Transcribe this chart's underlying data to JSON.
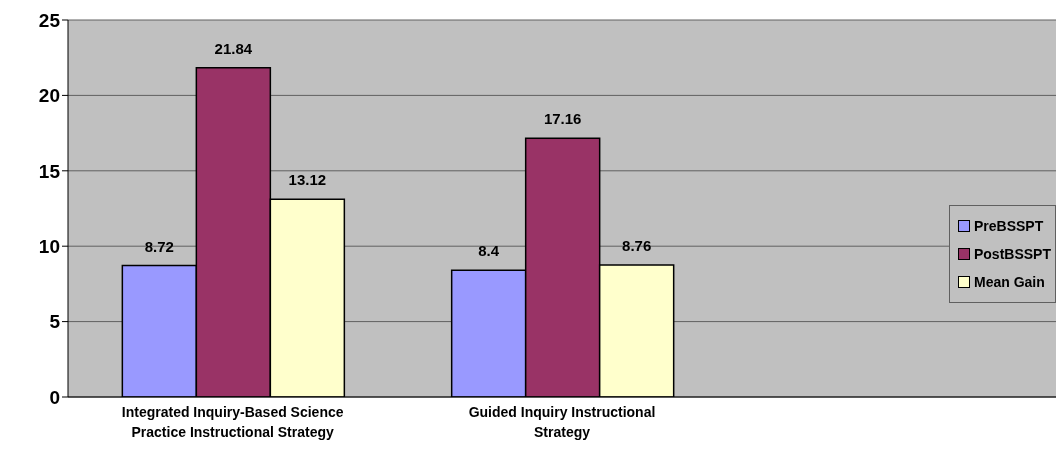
{
  "chart_data": {
    "type": "bar",
    "categories": [
      "Integrated Inquiry-Based Science Practice Instructional Strategy",
      "Guided Inquiry Instructional Strategy",
      null
    ],
    "series": [
      {
        "name": "PreBSSPT",
        "color": "#9999ff",
        "values": [
          8.72,
          8.4,
          null
        ]
      },
      {
        "name": "PostBSSPT",
        "color": "#993366",
        "values": [
          21.84,
          17.16,
          null
        ]
      },
      {
        "name": "Mean Gain",
        "color": "#ffffcc",
        "values": [
          13.12,
          8.76,
          null
        ]
      }
    ],
    "ylim": [
      0,
      25
    ],
    "yticks": [
      0,
      5,
      10,
      15,
      20,
      25
    ],
    "grid": "y",
    "legend": "right",
    "data_labels": true
  }
}
